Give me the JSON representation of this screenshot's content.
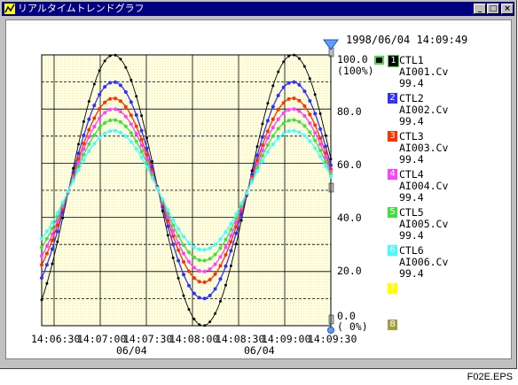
{
  "window": {
    "title": "リアルタイムトレンドグラフ",
    "minimize": "_",
    "maximize": "□",
    "close": "×"
  },
  "timestamp": "1998/06/04 14:09:49",
  "axis": {
    "y_ticks": [
      "100.0",
      "80.0",
      "60.0",
      "40.0",
      "20.0",
      "0.0"
    ],
    "y_top_pct": "(100%)",
    "y_bottom_pct": "(  0%)",
    "x_ticks": [
      "14:06:30",
      "14:07:00",
      "14:07:30",
      "14:08:00",
      "14:08:30",
      "14:09:00",
      "14:09:30"
    ],
    "x_dates": [
      "06/04",
      "06/04"
    ]
  },
  "legend": [
    {
      "num": "1",
      "tag": "CTL1",
      "item": "AI001.Cv",
      "value": "99.4",
      "color": "#000000"
    },
    {
      "num": "2",
      "tag": "CTL2",
      "item": "AI002.Cv",
      "value": "99.4",
      "color": "#3030ff"
    },
    {
      "num": "3",
      "tag": "CTL3",
      "item": "AI003.Cv",
      "value": "99.4",
      "color": "#ff3000"
    },
    {
      "num": "4",
      "tag": "CTL4",
      "item": "AI004.Cv",
      "value": "99.4",
      "color": "#ff40ff"
    },
    {
      "num": "5",
      "tag": "CTL5",
      "item": "AI005.Cv",
      "value": "99.4",
      "color": "#40e040"
    },
    {
      "num": "6",
      "tag": "CTL6",
      "item": "AI006.Cv",
      "value": "99.4",
      "color": "#40ffff"
    },
    {
      "num": "7",
      "tag": "",
      "item": "",
      "value": "",
      "color": "#ffff00"
    },
    {
      "num": "8",
      "tag": "",
      "item": "",
      "value": "",
      "color": "#a0a040"
    }
  ],
  "footer": "F02E.EPS",
  "chart_data": {
    "type": "line",
    "ylim": [
      0,
      100
    ],
    "xlabel": "",
    "ylabel": "",
    "x": [
      "14:06:30",
      "14:07:00",
      "14:07:30",
      "14:08:00",
      "14:08:30",
      "14:09:00",
      "14:09:30"
    ],
    "series": [
      {
        "name": "CTL1",
        "color": "#000000",
        "amplitude": 50,
        "center": 50
      },
      {
        "name": "CTL2",
        "color": "#3030ff",
        "amplitude": 40,
        "center": 50
      },
      {
        "name": "CTL3",
        "color": "#ff3000",
        "amplitude": 34,
        "center": 50
      },
      {
        "name": "CTL4",
        "color": "#ff40ff",
        "amplitude": 30,
        "center": 50
      },
      {
        "name": "CTL5",
        "color": "#40e040",
        "amplitude": 26,
        "center": 50
      },
      {
        "name": "CTL6",
        "color": "#40ffff",
        "amplitude": 22,
        "center": 50
      }
    ]
  }
}
